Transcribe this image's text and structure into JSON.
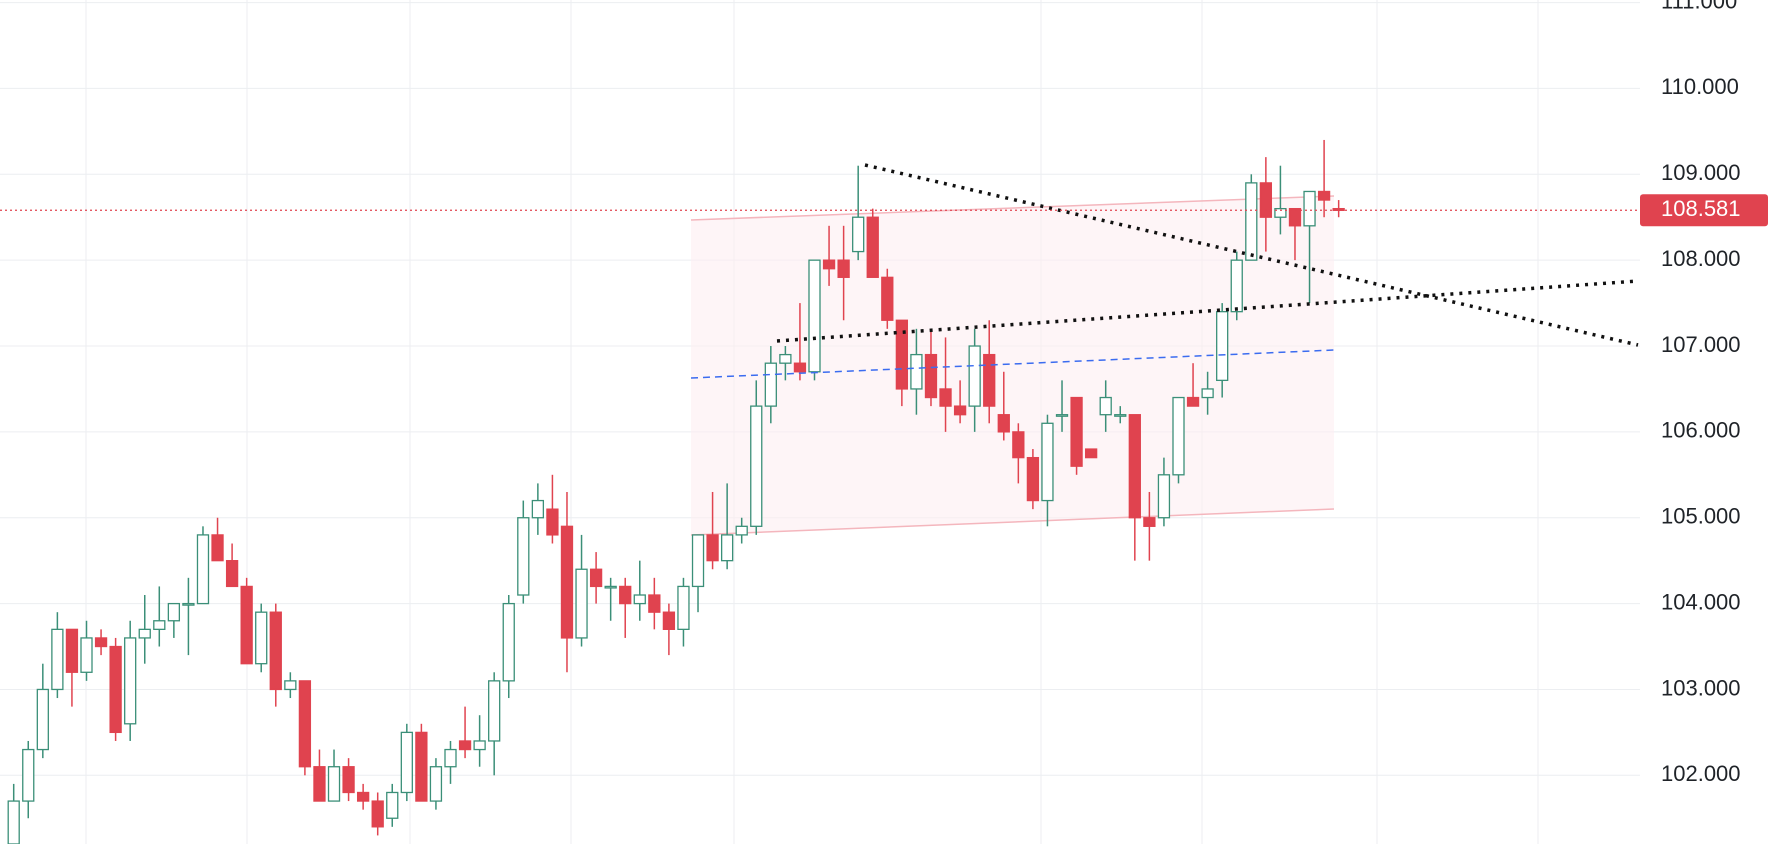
{
  "chart_data": {
    "type": "candlestick",
    "open": [
      101.2,
      101.7,
      102.3,
      103.0,
      103.7,
      103.2,
      103.6,
      103.5,
      102.6,
      103.6,
      103.7,
      103.8,
      104.0,
      104.0,
      104.8,
      104.5,
      104.2,
      103.3,
      103.9,
      103.0,
      103.1,
      102.1,
      101.7,
      102.1,
      101.8,
      101.7,
      101.5,
      101.8,
      102.5,
      101.7,
      102.1,
      102.4,
      102.3,
      102.4,
      103.1,
      104.1,
      105.0,
      105.1,
      104.9,
      103.6,
      104.4,
      104.2,
      104.2,
      104.0,
      104.1,
      103.9,
      103.7,
      104.2,
      104.8,
      104.5,
      104.8,
      104.9,
      106.3,
      106.8,
      106.8,
      106.7,
      108.0,
      108.0,
      108.1,
      108.5,
      107.8,
      107.3,
      106.5,
      106.9,
      106.5,
      106.3,
      106.3,
      106.9,
      106.2,
      106.0,
      105.7,
      105.2,
      106.2,
      106.4,
      105.8,
      106.2,
      106.2,
      106.2,
      105.0,
      105.0,
      105.5,
      106.4,
      106.4,
      106.6,
      107.4,
      108.0,
      108.9,
      108.5,
      108.6,
      108.4,
      108.8,
      108.6
    ],
    "high": [
      101.9,
      102.4,
      103.3,
      103.9,
      103.7,
      103.8,
      103.7,
      103.6,
      103.8,
      104.1,
      104.2,
      104.0,
      104.3,
      104.9,
      105.0,
      104.7,
      104.3,
      104.0,
      104.0,
      103.2,
      103.1,
      102.3,
      102.3,
      102.2,
      101.9,
      101.8,
      101.9,
      102.6,
      102.6,
      102.2,
      102.4,
      102.8,
      102.7,
      103.2,
      104.1,
      105.2,
      105.4,
      105.5,
      105.3,
      104.8,
      104.6,
      104.3,
      104.3,
      104.5,
      104.3,
      104.0,
      104.3,
      104.8,
      105.3,
      105.4,
      105.0,
      106.6,
      107.0,
      107.0,
      107.5,
      108.0,
      108.4,
      108.4,
      109.1,
      108.6,
      107.9,
      107.3,
      107.2,
      107.2,
      107.1,
      106.6,
      107.2,
      107.3,
      106.7,
      106.1,
      105.8,
      106.2,
      106.6,
      106.4,
      105.8,
      106.6,
      106.3,
      106.2,
      105.3,
      105.7,
      106.4,
      106.8,
      106.7,
      107.5,
      108.1,
      109.0,
      109.2,
      109.1,
      108.6,
      108.8,
      109.4,
      108.7
    ],
    "low": [
      101.0,
      101.5,
      102.2,
      102.9,
      102.8,
      103.1,
      103.4,
      102.4,
      102.4,
      103.3,
      103.5,
      103.6,
      103.4,
      104.0,
      104.5,
      104.2,
      103.3,
      103.2,
      102.8,
      102.9,
      102.0,
      101.7,
      101.7,
      101.7,
      101.6,
      101.3,
      101.4,
      101.7,
      101.7,
      101.6,
      101.9,
      102.2,
      102.1,
      102.0,
      102.9,
      104.0,
      104.8,
      104.7,
      103.2,
      103.5,
      104.0,
      103.8,
      103.6,
      103.8,
      103.7,
      103.4,
      103.5,
      103.9,
      104.4,
      104.4,
      104.7,
      104.8,
      106.1,
      106.6,
      106.6,
      106.6,
      107.7,
      107.3,
      108.0,
      107.8,
      107.2,
      106.3,
      106.2,
      106.3,
      106.0,
      106.1,
      106.0,
      106.1,
      105.9,
      105.4,
      105.1,
      104.9,
      106.0,
      105.5,
      105.7,
      106.0,
      106.1,
      104.5,
      104.5,
      104.9,
      105.4,
      106.3,
      106.2,
      106.4,
      107.3,
      108.0,
      108.1,
      108.3,
      108.0,
      107.5,
      108.5,
      108.5
    ],
    "close": [
      101.7,
      102.3,
      103.0,
      103.7,
      103.2,
      103.6,
      103.5,
      102.5,
      103.6,
      103.7,
      103.8,
      104.0,
      104.0,
      104.8,
      104.5,
      104.2,
      103.3,
      103.9,
      103.0,
      103.1,
      102.1,
      101.7,
      102.1,
      101.8,
      101.7,
      101.4,
      101.8,
      102.5,
      101.7,
      102.1,
      102.3,
      102.3,
      102.4,
      103.1,
      104.0,
      105.0,
      105.2,
      104.8,
      103.6,
      104.4,
      104.2,
      104.2,
      104.0,
      104.1,
      103.9,
      103.7,
      104.2,
      104.8,
      104.5,
      104.8,
      104.9,
      106.3,
      106.8,
      106.9,
      106.7,
      108.0,
      107.9,
      107.8,
      108.5,
      107.8,
      107.3,
      106.5,
      106.9,
      106.4,
      106.3,
      106.2,
      107.0,
      106.3,
      106.0,
      105.7,
      105.2,
      106.1,
      106.2,
      105.6,
      105.7,
      106.4,
      106.2,
      105.0,
      104.9,
      105.5,
      106.4,
      106.3,
      106.5,
      107.4,
      108.0,
      108.9,
      108.5,
      108.6,
      108.4,
      108.8,
      108.7,
      108.58
    ],
    "up_color": "#3b8f78",
    "down_color": "#e0434f",
    "ylim": [
      101.2,
      111.03
    ],
    "yticks": [
      {
        "value": 102,
        "label": "102.000"
      },
      {
        "value": 103,
        "label": "103.000"
      },
      {
        "value": 104,
        "label": "104.000"
      },
      {
        "value": 105,
        "label": "105.000"
      },
      {
        "value": 106,
        "label": "106.000"
      },
      {
        "value": 107,
        "label": "107.000"
      },
      {
        "value": 108,
        "label": "108.000"
      },
      {
        "value": 109,
        "label": "109.000"
      },
      {
        "value": 110,
        "label": "110.000"
      },
      {
        "value": 111,
        "label": "111.000"
      }
    ],
    "grid": true,
    "last_price": 108.581
  }
}
